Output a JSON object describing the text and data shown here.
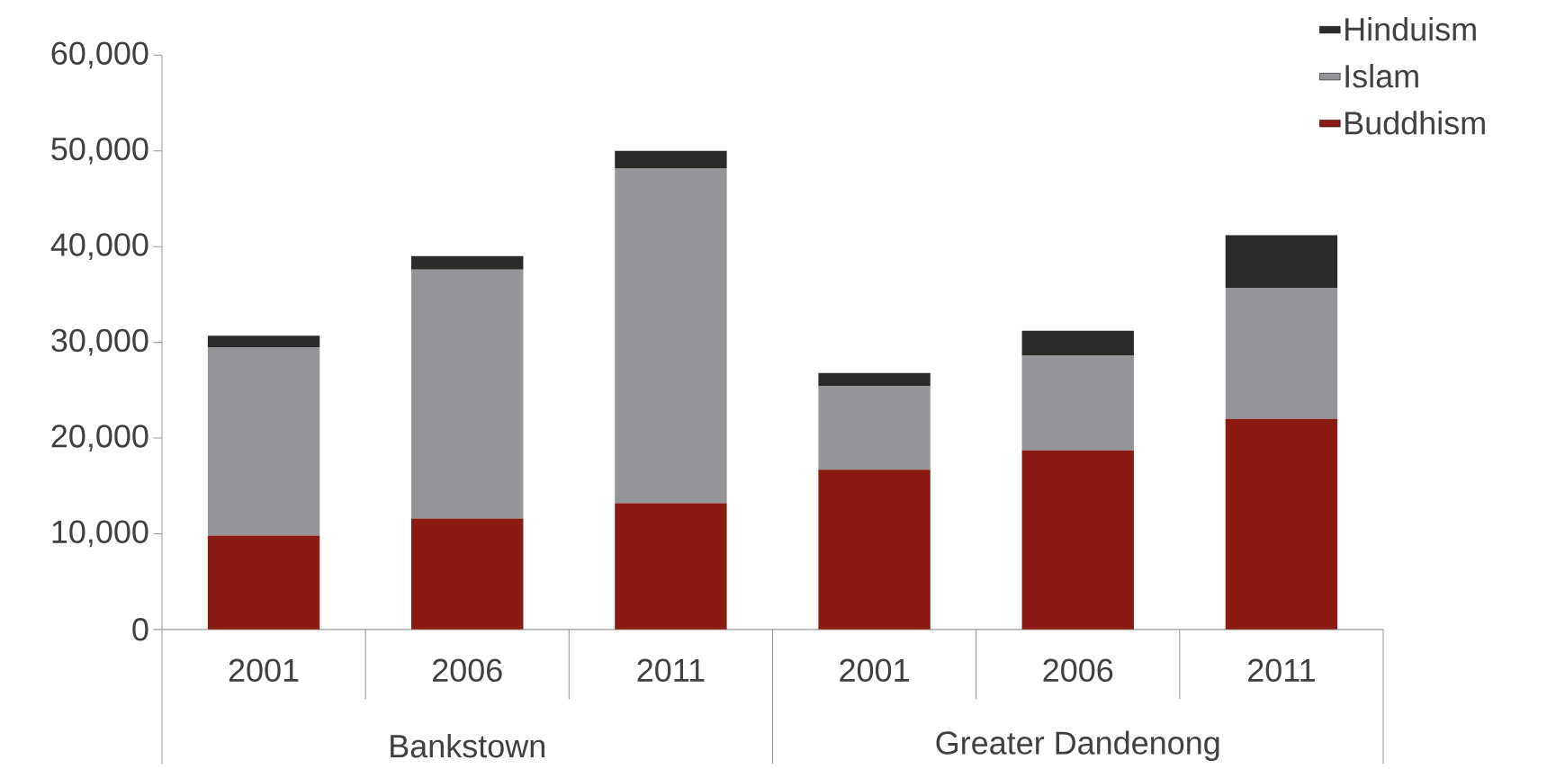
{
  "chart_data": {
    "type": "bar",
    "stacked": true,
    "categories": [
      "2001",
      "2006",
      "2011",
      "2001",
      "2006",
      "2011"
    ],
    "annotations": [
      "Bankstown",
      "Greater Dandenong"
    ],
    "series": [
      {
        "name": "Buddhism",
        "color": "#8b1a12",
        "values": [
          9800,
          11600,
          13200,
          16700,
          18700,
          22000
        ]
      },
      {
        "name": "Islam",
        "color": "#939598",
        "values": [
          19700,
          26000,
          35000,
          8700,
          9900,
          13700
        ]
      },
      {
        "name": "Hinduism",
        "color": "#2b2b29",
        "values": [
          1200,
          1400,
          1800,
          1400,
          2600,
          5500
        ]
      }
    ],
    "ylim": [
      0,
      60000
    ],
    "yticks": [
      0,
      {
        "value": 10000,
        "label": "10,000"
      },
      {
        "value": 20000,
        "label": "20,000"
      },
      {
        "value": 30000,
        "label": "30,000"
      },
      {
        "value": 40000,
        "label": "40,000"
      },
      {
        "value": 50000,
        "label": "50,000"
      },
      {
        "value": 60000,
        "label": "60,000"
      }
    ],
    "legend": "top right"
  }
}
